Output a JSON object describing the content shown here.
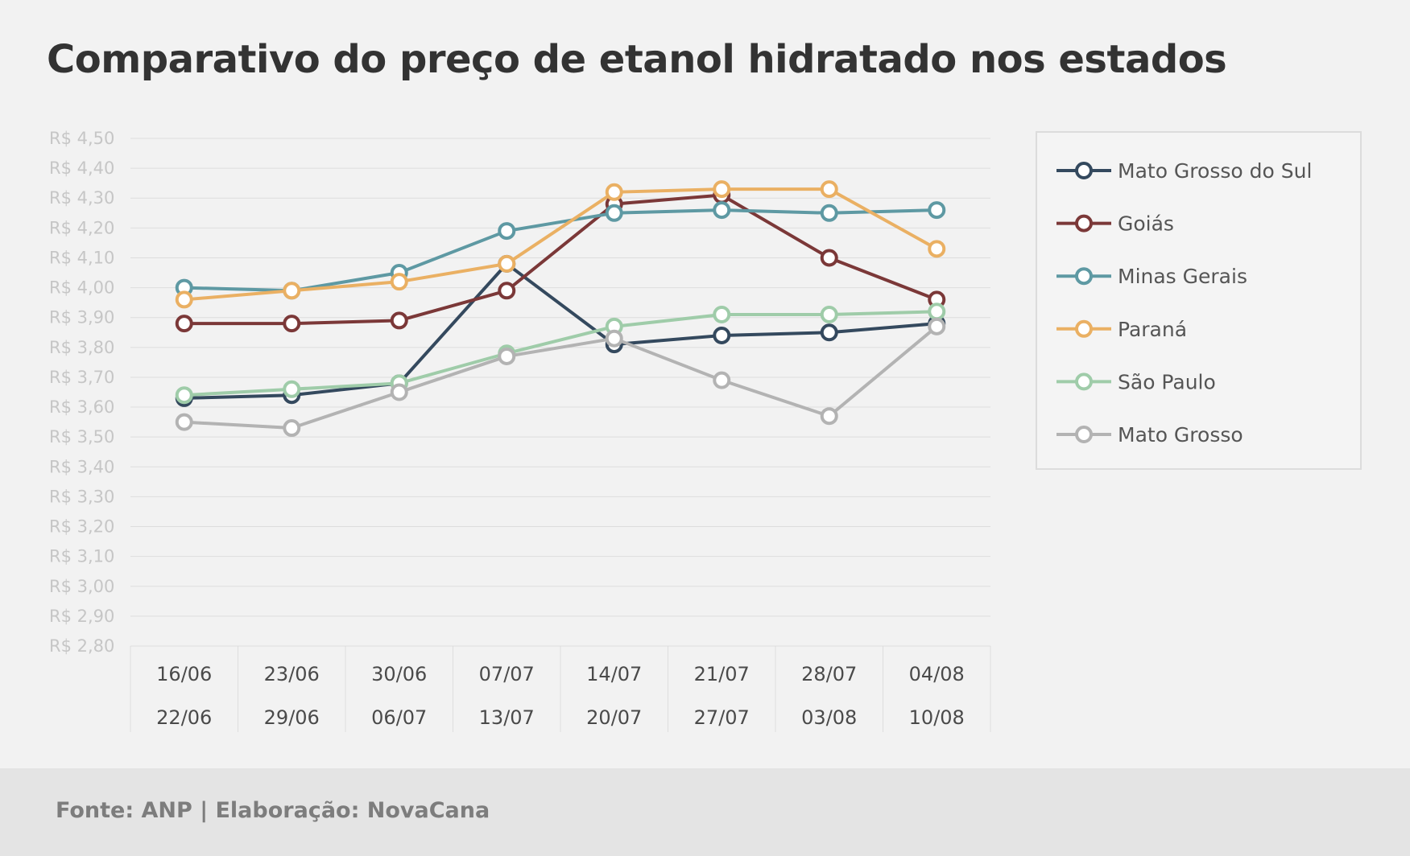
{
  "title": "Comparativo do preço de etanol hidratado nos estados",
  "source": "Fonte: ANP | Elaboração: NovaCana",
  "chart_data": {
    "type": "line",
    "title": "Comparativo do preço de etanol hidratado nos estados",
    "ylabel": "",
    "xlabel": "",
    "ylim": [
      2.8,
      4.5
    ],
    "ytick_step": 0.1,
    "y_tick_labels": [
      "R$ 4,50",
      "R$ 4,40",
      "R$ 4,30",
      "R$ 4,20",
      "R$ 4,10",
      "R$ 4,00",
      "R$ 3,90",
      "R$ 3,80",
      "R$ 3,70",
      "R$ 3,60",
      "R$ 3,50",
      "R$ 3,40",
      "R$ 3,30",
      "R$ 3,20",
      "R$ 3,10",
      "R$ 3,00",
      "R$ 2,90",
      "R$ 2,80"
    ],
    "grid": true,
    "legend_position": "right",
    "categories": [
      {
        "start": "16/06",
        "end": "22/06"
      },
      {
        "start": "23/06",
        "end": "29/06"
      },
      {
        "start": "30/06",
        "end": "06/07"
      },
      {
        "start": "07/07",
        "end": "13/07"
      },
      {
        "start": "14/07",
        "end": "20/07"
      },
      {
        "start": "21/07",
        "end": "27/07"
      },
      {
        "start": "28/07",
        "end": "03/08"
      },
      {
        "start": "04/08",
        "end": "10/08"
      }
    ],
    "series": [
      {
        "name": "Mato Grosso do Sul",
        "color": "#34495e",
        "values": [
          3.63,
          3.64,
          3.68,
          4.08,
          3.81,
          3.84,
          3.85,
          3.88
        ]
      },
      {
        "name": "Goiás",
        "color": "#7b3838",
        "values": [
          3.88,
          3.88,
          3.89,
          3.99,
          4.28,
          4.31,
          4.1,
          3.96
        ]
      },
      {
        "name": "Minas Gerais",
        "color": "#5e99a3",
        "values": [
          4.0,
          3.99,
          4.05,
          4.19,
          4.25,
          4.26,
          4.25,
          4.26
        ]
      },
      {
        "name": "Paraná",
        "color": "#eab063",
        "values": [
          3.96,
          3.99,
          4.02,
          4.08,
          4.32,
          4.33,
          4.33,
          4.13
        ]
      },
      {
        "name": "São Paulo",
        "color": "#9fcca9",
        "values": [
          3.64,
          3.66,
          3.68,
          3.78,
          3.87,
          3.91,
          3.91,
          3.92
        ]
      },
      {
        "name": "Mato Grosso",
        "color": "#b3b3b3",
        "values": [
          3.55,
          3.53,
          3.65,
          3.77,
          3.83,
          3.69,
          3.57,
          3.87
        ]
      }
    ]
  }
}
